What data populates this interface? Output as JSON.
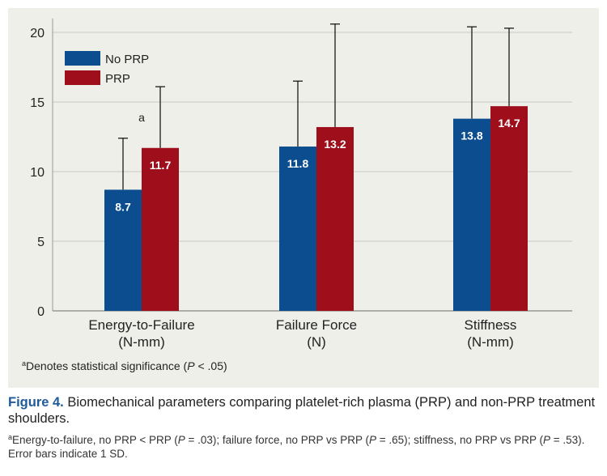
{
  "chart_data": {
    "type": "bar",
    "categories": [
      {
        "line1": "Energy-to-Failure",
        "line2": "(N-mm)"
      },
      {
        "line1": "Failure Force",
        "line2": "(N)"
      },
      {
        "line1": "Stiffness",
        "line2": "(N-mm)"
      }
    ],
    "series": [
      {
        "name": "No PRP",
        "color": "#0b4d8f",
        "values": [
          8.7,
          11.8,
          13.8
        ],
        "labels": [
          "8.7",
          "11.8",
          "13.8"
        ],
        "error_upper": [
          12.4,
          16.5,
          20.4
        ]
      },
      {
        "name": "PRP",
        "color": "#9e0f1b",
        "values": [
          11.7,
          13.2,
          14.7
        ],
        "labels": [
          "11.7",
          "13.2",
          "14.7"
        ],
        "error_upper": [
          16.1,
          20.6,
          20.3
        ]
      }
    ],
    "ylim": [
      0,
      21
    ],
    "yticks": [
      0,
      5,
      10,
      15,
      20
    ],
    "grid": true,
    "legend_position": "top-left",
    "annotation": {
      "text": "a",
      "category_index": 0,
      "value": 13.9
    },
    "footnote": {
      "mark": "a",
      "pre": "Denotes statistical significance (",
      "italic": "P",
      "post": " < .05)"
    }
  },
  "caption": {
    "label": "Figure 4.",
    "text": " Biomechanical parameters comparing platelet-rich plasma (PRP) and non-PRP treatment shoulders.",
    "footnote_mark": "a",
    "fn1": "Energy-to-failure, no PRP < PRP (",
    "fn_p1": "P",
    "fn2": " = .03); failure force, no PRP vs PRP (",
    "fn_p2": "P",
    "fn3": " = .65); stiffness, no PRP vs PRP (",
    "fn_p3": "P",
    "fn4": " = .53). Error bars indicate 1 SD."
  }
}
